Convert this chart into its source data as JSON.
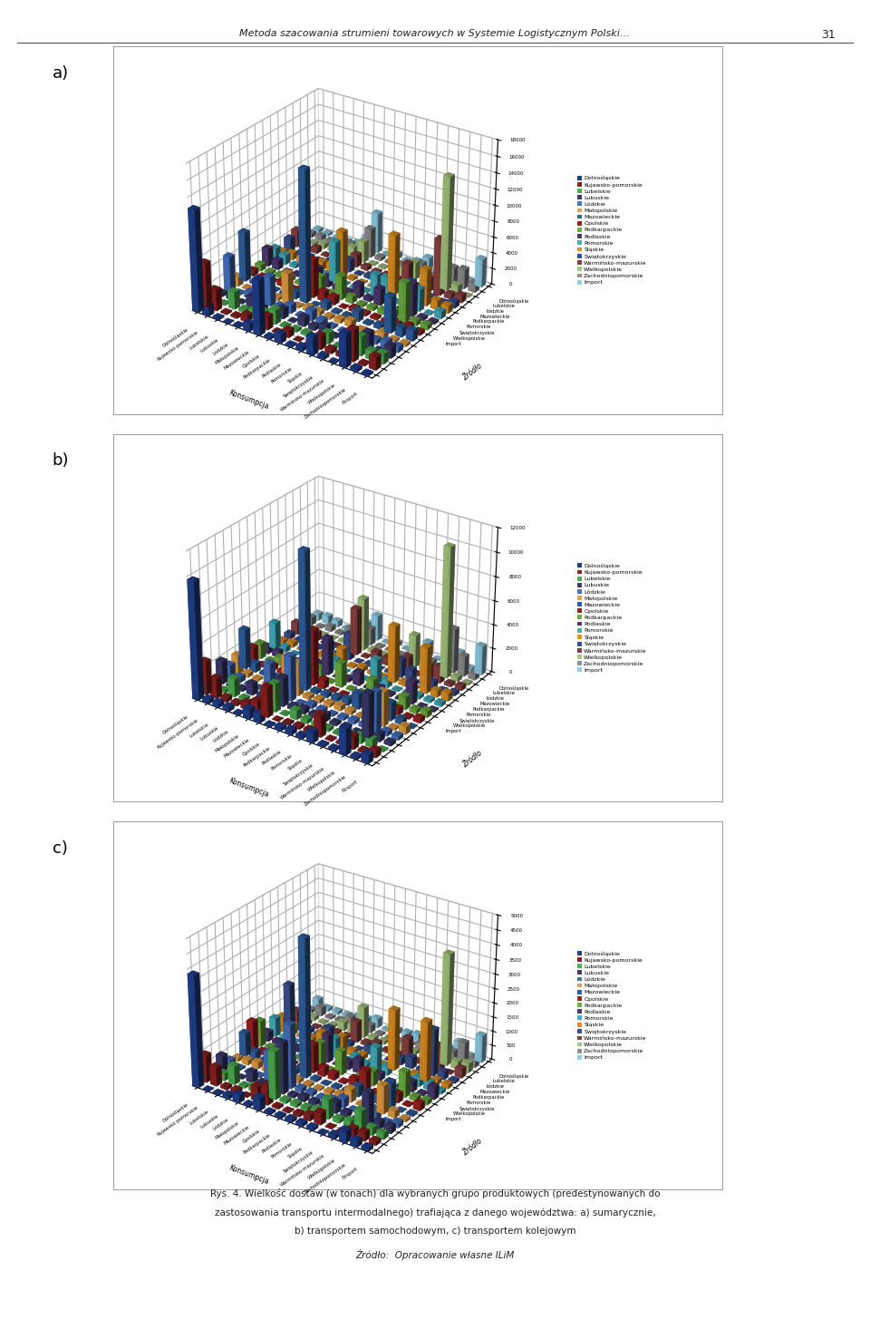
{
  "header": "Metoda szacowania strumieni towarowych w Systemie Logistycznym Polski…",
  "page_number": "31",
  "caption_line1": "Rys. 4. Wielkość dostaw (w tonach) dla wybranych grupo produktowych (predestynowanych do",
  "caption_line2": "zastosowania transportu intermodalnego) trafiająca z danego województwa: a) sumarycznie,",
  "caption_line3": "b) transportem samochodowym, c) transportem kolejowym",
  "caption_line4": "Źródło:  Opracowanie własne ILiM",
  "voivodeships_x": [
    "Dolnośląskie",
    "Kujawsko-pomorskie",
    "Lubelskie",
    "Lubuskie",
    "Lódzkie",
    "Małopolskie",
    "Mazowieckie",
    "Opolskie",
    "Podkarpackie",
    "Podlaskie",
    "Pomorskie",
    "Śląskie",
    "Świętokrzyskie",
    "Warmińsko-mazurskie",
    "Wielkopolskie",
    "Zachodniopomorskie",
    "Eksport"
  ],
  "legend_labels": [
    "Dolnośląskie",
    "Kujawsko-pomorskie",
    "Lubelskie",
    "Lubuskie",
    "Lódzkie",
    "Małopolskie",
    "Mazowieckie",
    "Opolskie",
    "Podkarpackie",
    "Podlaskie",
    "Pomorskie",
    "Śląskie",
    "Świętokrzyskie",
    "Warmińsko-mazurskie",
    "Wielkopolskie",
    "Zachodniopomorskie",
    "Import"
  ],
  "bar_colors": [
    "#1F3F8F",
    "#8B2020",
    "#4CAF50",
    "#3A3A6E",
    "#4472C4",
    "#E8A040",
    "#2E5FA0",
    "#A02020",
    "#6AAF40",
    "#4A3A70",
    "#40B0C0",
    "#E09020",
    "#3A5090",
    "#8B4040",
    "#A8C880",
    "#909090",
    "#90D0E8"
  ],
  "depth_labels": [
    "Import",
    "Wielkopolskie",
    "Świętokrzyskie",
    "Pomorskie",
    "Podkarpackie",
    "Mazowieckie",
    "Łódzkie",
    "Lubelskie",
    "Dolnośląskie"
  ],
  "xlabel": "Konsumpcja",
  "zrodlo_label": "Źródło",
  "yticks_a": [
    0,
    2000,
    4000,
    6000,
    8000,
    10000,
    12000,
    14000,
    16000,
    18000
  ],
  "yticks_b": [
    0,
    2000,
    4000,
    6000,
    8000,
    10000,
    12000
  ],
  "yticks_c": [
    0,
    500,
    1000,
    1500,
    2000,
    2500,
    3000,
    3500,
    4000,
    4500,
    5000
  ],
  "label_a": "a)",
  "label_b": "b)",
  "label_c": "c)",
  "background_color": "#FFFFFF"
}
